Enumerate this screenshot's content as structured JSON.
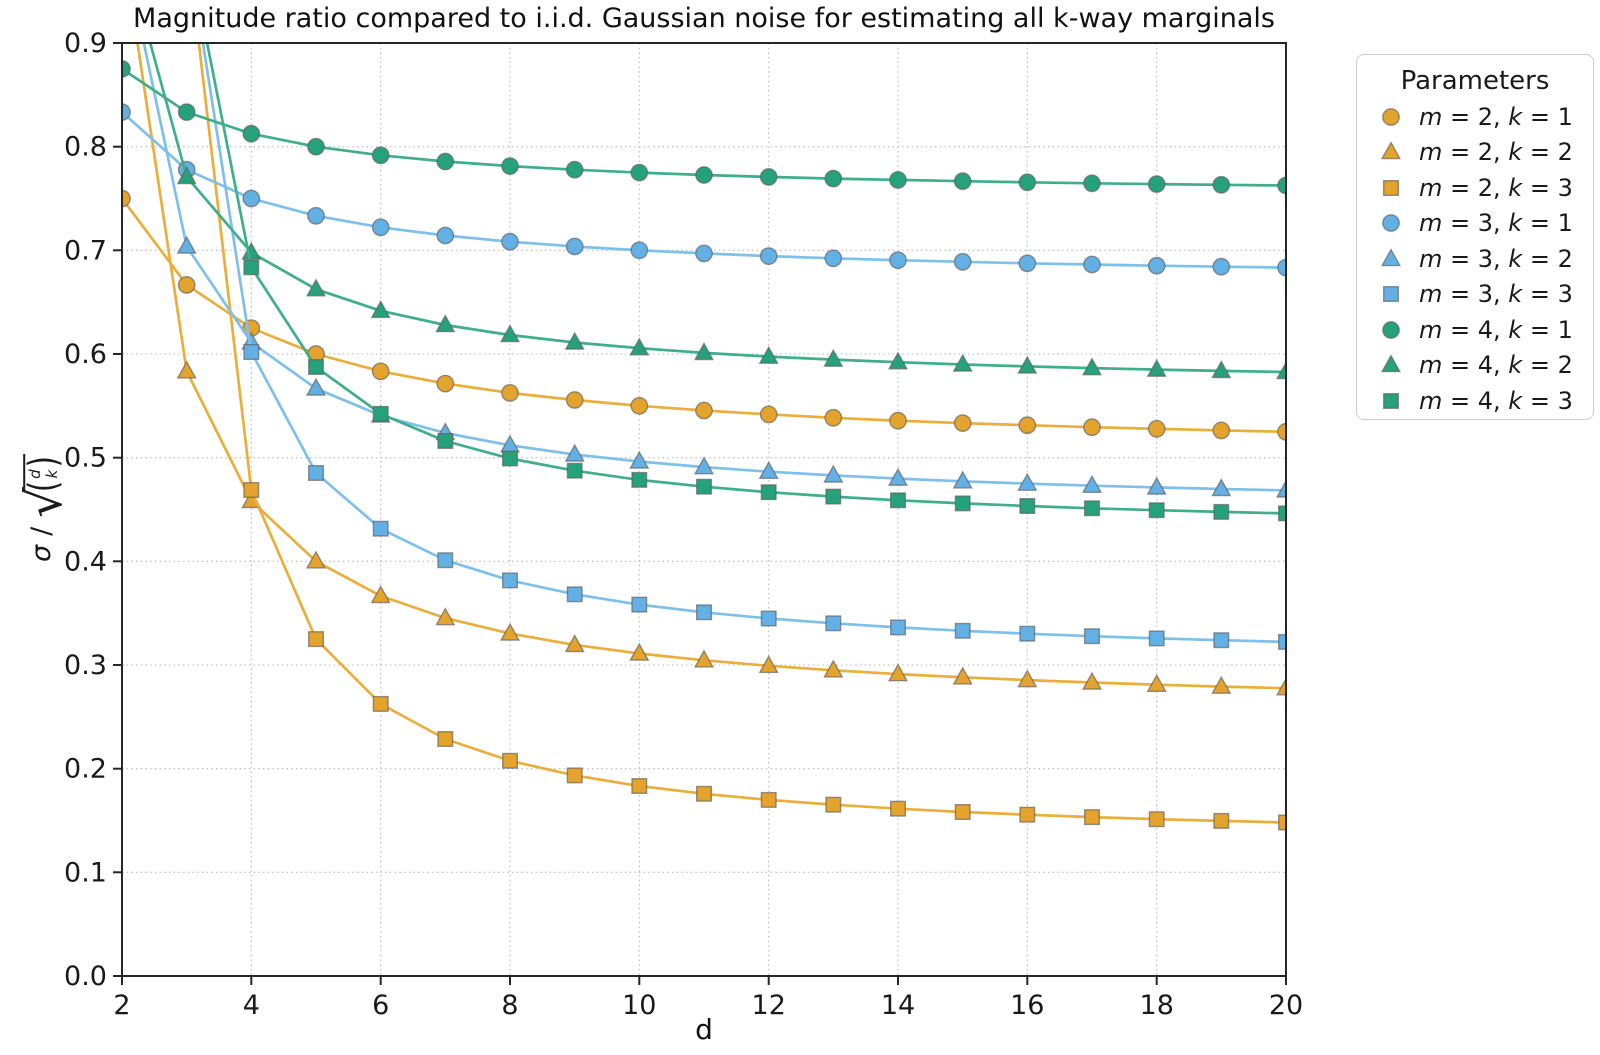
{
  "chart_data": {
    "type": "line",
    "title": "Magnitude ratio compared to i.i.d. Gaussian noise for estimating all k-way marginals",
    "xlabel": "d",
    "ylabel": "σ / √(binom(d, k))",
    "ylabel_parts": {
      "sigma": "σ",
      "op": "/",
      "radical": "√",
      "lparen": "(",
      "top": "d",
      "bottom": "k",
      "rparen": ")"
    },
    "xlim": [
      2,
      20
    ],
    "ylim": [
      0.0,
      0.9
    ],
    "xticks": [
      2,
      4,
      6,
      8,
      10,
      12,
      14,
      16,
      18,
      20
    ],
    "ytick_labels": [
      "0.0",
      "0.1",
      "0.2",
      "0.3",
      "0.4",
      "0.5",
      "0.6",
      "0.7",
      "0.8",
      "0.9"
    ],
    "grid": true,
    "legend": {
      "title": "Parameters",
      "vars": [
        "m",
        "k"
      ],
      "position": "outside right"
    },
    "series": [
      {
        "label": "m = 2, k = 1",
        "m": 2,
        "k": 1,
        "marker": "circle",
        "line_color": "#EAAE3C",
        "marker_color": "#E3A32C",
        "x": [
          2,
          3,
          4,
          5,
          6,
          7,
          8,
          9,
          10,
          11,
          12,
          13,
          14,
          15,
          16,
          17,
          18,
          19,
          20
        ],
        "y": [
          0.75,
          0.6667,
          0.625,
          0.6,
          0.5833,
          0.5714,
          0.5625,
          0.5556,
          0.55,
          0.5455,
          0.5417,
          0.5385,
          0.5357,
          0.5333,
          0.5313,
          0.5294,
          0.5278,
          0.5263,
          0.525
        ]
      },
      {
        "label": "m = 2, k = 2",
        "m": 2,
        "k": 2,
        "marker": "triangle",
        "line_color": "#EAAE3C",
        "marker_color": "#E3A32C",
        "x": [
          2,
          3,
          4,
          5,
          6,
          7,
          8,
          9,
          10,
          11,
          12,
          13,
          14,
          15,
          16,
          17,
          18,
          19,
          20
        ],
        "y": [
          1.0,
          0.5833,
          0.4583,
          0.4,
          0.3667,
          0.3452,
          0.3304,
          0.3194,
          0.3111,
          0.3045,
          0.2992,
          0.2949,
          0.2912,
          0.2881,
          0.2854,
          0.2831,
          0.281,
          0.2792,
          0.2776
        ]
      },
      {
        "label": "m = 2, k = 3",
        "m": 2,
        "k": 3,
        "marker": "square",
        "line_color": "#EAAE3C",
        "marker_color": "#E3A32C",
        "x": [
          3,
          4,
          5,
          6,
          7,
          8,
          9,
          10,
          11,
          12,
          13,
          14,
          15,
          16,
          17,
          18,
          19,
          20
        ],
        "y": [
          1.0,
          0.4688,
          0.325,
          0.2625,
          0.2286,
          0.2076,
          0.1935,
          0.1833,
          0.1758,
          0.1699,
          0.1652,
          0.1614,
          0.1582,
          0.1556,
          0.1533,
          0.1513,
          0.1496,
          0.1481
        ]
      },
      {
        "label": "m = 3, k = 1",
        "m": 3,
        "k": 1,
        "marker": "circle",
        "line_color": "#7FC0EA",
        "marker_color": "#62B0E4",
        "x": [
          2,
          3,
          4,
          5,
          6,
          7,
          8,
          9,
          10,
          11,
          12,
          13,
          14,
          15,
          16,
          17,
          18,
          19,
          20
        ],
        "y": [
          0.8333,
          0.7778,
          0.75,
          0.7333,
          0.7222,
          0.7143,
          0.7083,
          0.7037,
          0.7,
          0.697,
          0.6944,
          0.6923,
          0.6905,
          0.6889,
          0.6875,
          0.6863,
          0.6852,
          0.6842,
          0.6833
        ]
      },
      {
        "label": "m = 3, k = 2",
        "m": 3,
        "k": 2,
        "marker": "triangle",
        "line_color": "#7FC0EA",
        "marker_color": "#62B0E4",
        "x": [
          2,
          3,
          4,
          5,
          6,
          7,
          8,
          9,
          10,
          11,
          12,
          13,
          14,
          15,
          16,
          17,
          18,
          19,
          20
        ],
        "y": [
          1.0,
          0.7037,
          0.6111,
          0.5667,
          0.5407,
          0.5238,
          0.5119,
          0.5031,
          0.4963,
          0.4909,
          0.4865,
          0.4829,
          0.4798,
          0.4772,
          0.475,
          0.473,
          0.4713,
          0.4698,
          0.4684
        ]
      },
      {
        "label": "m = 3, k = 3",
        "m": 3,
        "k": 3,
        "marker": "square",
        "line_color": "#7FC0EA",
        "marker_color": "#62B0E4",
        "x": [
          3,
          4,
          5,
          6,
          7,
          8,
          9,
          10,
          11,
          12,
          13,
          14,
          15,
          16,
          17,
          18,
          19,
          20
        ],
        "y": [
          1.0,
          0.6019,
          0.4852,
          0.4315,
          0.4011,
          0.3816,
          0.3682,
          0.3583,
          0.3508,
          0.3449,
          0.3402,
          0.3363,
          0.333,
          0.3302,
          0.3278,
          0.3257,
          0.3239,
          0.3223
        ]
      },
      {
        "label": "m = 4, k = 1",
        "m": 4,
        "k": 1,
        "marker": "circle",
        "line_color": "#3FAE8B",
        "marker_color": "#26A27A",
        "x": [
          2,
          3,
          4,
          5,
          6,
          7,
          8,
          9,
          10,
          11,
          12,
          13,
          14,
          15,
          16,
          17,
          18,
          19,
          20
        ],
        "y": [
          0.875,
          0.8333,
          0.8125,
          0.8,
          0.7917,
          0.7857,
          0.7813,
          0.7778,
          0.775,
          0.7727,
          0.7708,
          0.7692,
          0.7679,
          0.7667,
          0.7656,
          0.7647,
          0.7639,
          0.7632,
          0.7625
        ]
      },
      {
        "label": "m = 4, k = 2",
        "m": 4,
        "k": 2,
        "marker": "triangle",
        "line_color": "#3FAE8B",
        "marker_color": "#26A27A",
        "x": [
          2,
          3,
          4,
          5,
          6,
          7,
          8,
          9,
          10,
          11,
          12,
          13,
          14,
          15,
          16,
          17,
          18,
          19,
          20
        ],
        "y": [
          1.0,
          0.7708,
          0.6979,
          0.6625,
          0.6417,
          0.628,
          0.6183,
          0.6111,
          0.6056,
          0.6011,
          0.5975,
          0.5946,
          0.5921,
          0.5899,
          0.588,
          0.5864,
          0.585,
          0.5837,
          0.5826
        ]
      },
      {
        "label": "m = 4, k = 3",
        "m": 4,
        "k": 3,
        "marker": "square",
        "line_color": "#3FAE8B",
        "marker_color": "#26A27A",
        "x": [
          3,
          4,
          5,
          6,
          7,
          8,
          9,
          10,
          11,
          12,
          13,
          14,
          15,
          16,
          17,
          18,
          19,
          20
        ],
        "y": [
          1.0,
          0.6836,
          0.5875,
          0.5422,
          0.5161,
          0.4992,
          0.4874,
          0.4786,
          0.472,
          0.4667,
          0.4624,
          0.4589,
          0.4559,
          0.4534,
          0.4512,
          0.4493,
          0.4477,
          0.4462
        ]
      }
    ]
  }
}
